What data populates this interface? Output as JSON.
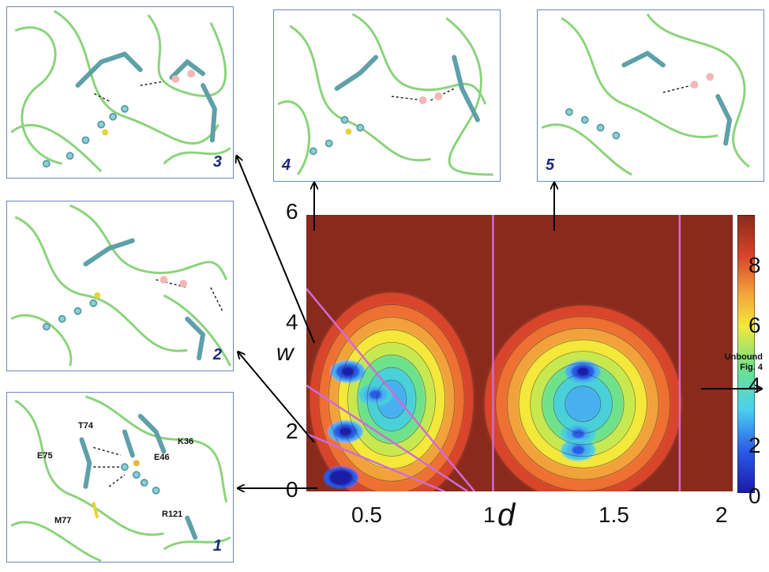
{
  "panels": [
    {
      "label": "3",
      "residues": []
    },
    {
      "label": "4",
      "residues": []
    },
    {
      "label": "5",
      "residues": []
    },
    {
      "label": "2",
      "residues": []
    },
    {
      "label": "1",
      "residues": [
        "T74",
        "E75",
        "E46",
        "K36",
        "M77",
        "R121"
      ]
    }
  ],
  "annotation": {
    "line1": "Unbound",
    "line2": "Fig. 4"
  },
  "colors": {
    "panel_border": "#6a86c8",
    "arrow": "#000000",
    "boundary_lines": "#d26ad6"
  },
  "chart_data": {
    "type": "heatmap",
    "xlabel": "d",
    "ylabel": "w",
    "xlim": [
      0.15,
      2.0
    ],
    "ylim": [
      0,
      6
    ],
    "xticks": [
      "0.5",
      "1",
      "1.5",
      "2"
    ],
    "yticks": [
      "0",
      "2",
      "4",
      "6"
    ],
    "colorbar": {
      "ticks": [
        "0",
        "2",
        "4",
        "6",
        "8"
      ],
      "range": [
        0,
        9.5
      ]
    },
    "vertical_lines_d": [
      0.96,
      1.77
    ],
    "minima": [
      {
        "d": 0.3,
        "w": 0.3,
        "level": 0.5
      },
      {
        "d": 0.32,
        "w": 1.3,
        "level": 1.6
      },
      {
        "d": 0.33,
        "w": 2.6,
        "level": 2.0
      },
      {
        "d": 0.45,
        "w": 2.1,
        "level": 2.3
      },
      {
        "d": 1.35,
        "w": 2.6,
        "level": 1.8
      },
      {
        "d": 1.33,
        "w": 1.25,
        "level": 2.4
      },
      {
        "d": 1.33,
        "w": 0.9,
        "level": 2.6
      }
    ]
  }
}
